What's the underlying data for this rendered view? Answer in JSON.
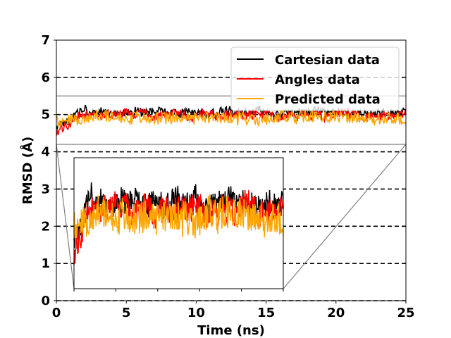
{
  "chart_data": {
    "type": "line",
    "title": "",
    "xlabel": "Time (ns)",
    "ylabel": "RMSD (Å)",
    "xlim": [
      0,
      25
    ],
    "ylim": [
      0,
      7
    ],
    "x_ticks": [
      0,
      5,
      10,
      15,
      20,
      25
    ],
    "y_ticks": [
      0,
      1,
      2,
      3,
      4,
      5,
      6,
      7
    ],
    "x_tick_labels": [
      "0",
      "5",
      "10",
      "15",
      "20",
      "25"
    ],
    "y_tick_labels": [
      "0",
      "1",
      "2",
      "3",
      "4",
      "5",
      "6",
      "7"
    ],
    "grid": "horizontal dashed",
    "legend_position": "top-right",
    "series": [
      {
        "name": "Cartesian data",
        "color": "#000000",
        "mean": 5.05,
        "noise": 0.12,
        "start": 4.75,
        "seed": 11
      },
      {
        "name": "Angles data",
        "color": "#ff0000",
        "mean": 4.98,
        "noise": 0.13,
        "start": 4.6,
        "seed": 23
      },
      {
        "name": "Predicted data",
        "color": "#ffa500",
        "mean": 4.92,
        "noise": 0.16,
        "start": 4.8,
        "seed": 37
      }
    ],
    "legend_labels": [
      "Cartesian data",
      "Angles data",
      " Predicted data"
    ],
    "inset": {
      "description": "zoom of RMSD 4.2–5.5 region",
      "ylim": [
        4.2,
        5.5
      ],
      "xlim": [
        0,
        25
      ]
    }
  }
}
